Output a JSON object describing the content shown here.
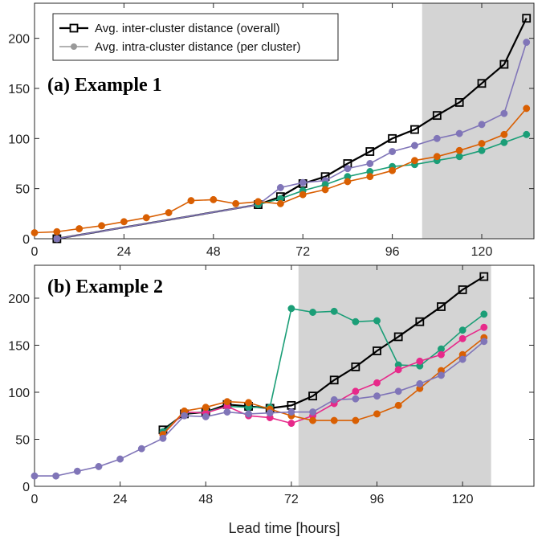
{
  "chart_data": [
    {
      "type": "line",
      "title": "(a) Example 1",
      "xlabel": "",
      "ylabel": "",
      "xlim": [
        0,
        134
      ],
      "ylim": [
        0,
        235
      ],
      "xticks": [
        0,
        24,
        48,
        72,
        96,
        120
      ],
      "yticks": [
        0,
        50,
        100,
        150,
        200
      ],
      "shaded_region": [
        104,
        134
      ],
      "legend": {
        "placement": "top-left",
        "entries": [
          {
            "label": "Avg. inter-cluster distance (overall)",
            "color": "#000000",
            "marker": "square"
          },
          {
            "label": "Avg. intra-cluster distance (per cluster)",
            "color": "#999999",
            "marker": "circle"
          }
        ]
      },
      "series": [
        {
          "color": "#000000",
          "marker": "square",
          "x": [
            6,
            60,
            66,
            72,
            78,
            84,
            90,
            96,
            102,
            108,
            114,
            120,
            126,
            132
          ],
          "y": [
            0,
            34,
            42,
            55,
            62,
            75,
            87,
            100,
            109,
            123,
            136,
            155,
            174,
            220
          ]
        },
        {
          "color": "#8075b8",
          "marker": "circle",
          "x": [
            6,
            60,
            66,
            72,
            78,
            84,
            90,
            96,
            102,
            108,
            114,
            120,
            126,
            132
          ],
          "y": [
            0,
            34,
            51,
            56,
            58,
            70,
            75,
            87,
            93,
            100,
            105,
            114,
            125,
            196
          ]
        },
        {
          "color": "#1b9e77",
          "marker": "circle",
          "x": [
            60,
            66,
            72,
            78,
            84,
            90,
            96,
            102,
            108,
            114,
            120,
            126,
            132
          ],
          "y": [
            34,
            40,
            48,
            54,
            62,
            67,
            72,
            74,
            78,
            82,
            88,
            96,
            104
          ]
        },
        {
          "color": "#d95f02",
          "marker": "circle",
          "x": [
            0,
            6,
            12,
            18,
            24,
            30,
            36,
            42,
            48,
            54,
            60,
            66,
            72,
            78,
            84,
            90,
            96,
            102,
            108,
            114,
            120,
            126,
            132
          ],
          "y": [
            6,
            7,
            10,
            13,
            17,
            21,
            26,
            38,
            39,
            35,
            37,
            35,
            44,
            49,
            57,
            62,
            68,
            78,
            82,
            88,
            95,
            104,
            130
          ]
        }
      ]
    },
    {
      "type": "line",
      "title": "(b) Example 2",
      "xlabel": "Lead time [hours]",
      "ylabel": "",
      "xlim": [
        0,
        140
      ],
      "ylim": [
        0,
        235
      ],
      "xticks": [
        0,
        24,
        48,
        72,
        96,
        120
      ],
      "yticks": [
        0,
        50,
        100,
        150,
        200
      ],
      "shaded_region": [
        74,
        128
      ],
      "series": [
        {
          "color": "#000000",
          "marker": "square",
          "x": [
            36,
            42,
            48,
            54,
            60,
            66,
            72,
            78,
            84,
            90,
            96,
            102,
            108,
            114,
            120,
            126
          ],
          "y": [
            60,
            77,
            79,
            87,
            85,
            83,
            86,
            96,
            113,
            127,
            144,
            159,
            175,
            191,
            209,
            223
          ]
        },
        {
          "color": "#1b9e77",
          "marker": "circle",
          "x": [
            36,
            42,
            48,
            54,
            60,
            66,
            72,
            78,
            84,
            90,
            96,
            102,
            108,
            114,
            120,
            126
          ],
          "y": [
            58,
            78,
            79,
            85,
            84,
            84,
            189,
            185,
            186,
            175,
            176,
            129,
            128,
            146,
            166,
            183
          ]
        },
        {
          "color": "#e7298a",
          "marker": "circle",
          "x": [
            36,
            42,
            48,
            54,
            60,
            66,
            72,
            78,
            84,
            90,
            96,
            102,
            108,
            114,
            120,
            126
          ],
          "y": [
            55,
            79,
            78,
            85,
            75,
            73,
            67,
            75,
            88,
            101,
            110,
            124,
            133,
            140,
            157,
            169
          ]
        },
        {
          "color": "#d95f02",
          "marker": "circle",
          "x": [
            36,
            42,
            48,
            54,
            60,
            66,
            72,
            78,
            84,
            90,
            96,
            102,
            108,
            114,
            120,
            126
          ],
          "y": [
            55,
            80,
            84,
            90,
            89,
            82,
            75,
            70,
            70,
            70,
            77,
            86,
            104,
            123,
            140,
            158
          ]
        },
        {
          "color": "#8075b8",
          "marker": "circle",
          "x": [
            0,
            6,
            12,
            18,
            24,
            30,
            36,
            42,
            48,
            54,
            60,
            66,
            72,
            78,
            84,
            90,
            96,
            102,
            108,
            114,
            120,
            126
          ],
          "y": [
            11,
            11,
            16,
            21,
            29,
            40,
            51,
            75,
            74,
            79,
            77,
            78,
            79,
            79,
            92,
            93,
            96,
            101,
            109,
            118,
            135,
            154
          ]
        }
      ]
    }
  ]
}
